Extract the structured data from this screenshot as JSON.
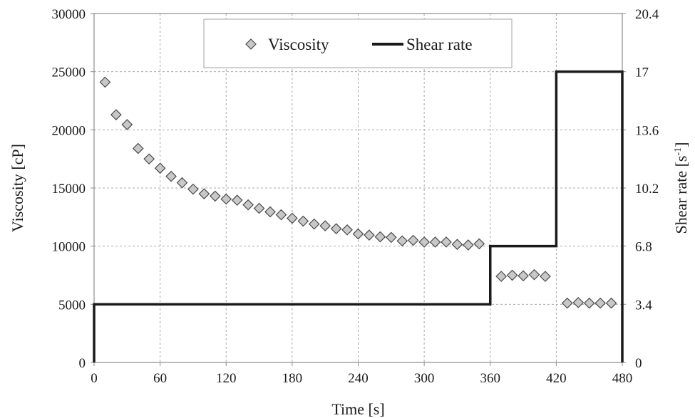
{
  "chart_data": {
    "type": "scatter",
    "xlabel": "Time [s]",
    "ylabel": "Viscosity [cP]",
    "y2label_main": "Shear rate [s",
    "y2label_sup": "-1",
    "y2label_close": "]",
    "xlim": [
      0,
      480
    ],
    "ylim": [
      0,
      30000
    ],
    "y2lim": [
      0,
      20.4
    ],
    "x_ticks": [
      "0",
      "60",
      "120",
      "180",
      "240",
      "300",
      "360",
      "420",
      "480"
    ],
    "y_ticks": [
      "0",
      "5000",
      "10000",
      "15000",
      "20000",
      "25000",
      "30000"
    ],
    "y2_ticks": [
      "0",
      "3.4",
      "6.8",
      "10.2",
      "13.6",
      "17",
      "20.4"
    ],
    "grid": true,
    "legend": {
      "position": "top-center",
      "entries": [
        "Viscosity",
        "Shear rate"
      ]
    },
    "series": [
      {
        "name": "Viscosity",
        "marker": "diamond",
        "color": "#c8c8c8",
        "axis": "left",
        "x": [
          10,
          20,
          30,
          40,
          50,
          60,
          70,
          80,
          90,
          100,
          110,
          120,
          130,
          140,
          150,
          160,
          170,
          180,
          190,
          200,
          210,
          220,
          230,
          240,
          250,
          260,
          270,
          280,
          290,
          300,
          310,
          320,
          330,
          340,
          350,
          370,
          380,
          390,
          400,
          410,
          430,
          440,
          450,
          460,
          470
        ],
        "y": [
          24100,
          21300,
          20450,
          18400,
          17500,
          16700,
          16000,
          15450,
          14900,
          14500,
          14300,
          14050,
          13950,
          13550,
          13250,
          12950,
          12700,
          12400,
          12150,
          11900,
          11750,
          11500,
          11400,
          11050,
          10950,
          10800,
          10750,
          10450,
          10500,
          10350,
          10350,
          10350,
          10150,
          10100,
          10200,
          7400,
          7500,
          7450,
          7550,
          7400,
          5100,
          5150,
          5100,
          5100,
          5100
        ]
      },
      {
        "name": "Shear rate",
        "line": "step",
        "color": "#1a1a1a",
        "axis": "right",
        "x": [
          0,
          0,
          360,
          360,
          420,
          420,
          480,
          480
        ],
        "y": [
          0,
          3.4,
          3.4,
          6.8,
          6.8,
          17,
          17,
          0
        ]
      }
    ]
  }
}
